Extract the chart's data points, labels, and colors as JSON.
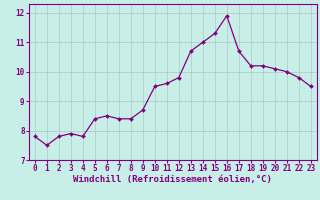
{
  "x": [
    0,
    1,
    2,
    3,
    4,
    5,
    6,
    7,
    8,
    9,
    10,
    11,
    12,
    13,
    14,
    15,
    16,
    17,
    18,
    19,
    20,
    21,
    22,
    23
  ],
  "y": [
    7.8,
    7.5,
    7.8,
    7.9,
    7.8,
    8.4,
    8.5,
    8.4,
    8.4,
    8.7,
    9.5,
    9.6,
    9.8,
    10.7,
    11.0,
    11.3,
    11.9,
    10.7,
    10.2,
    10.2,
    10.1,
    10.0,
    9.8,
    9.5
  ],
  "line_color": "#800080",
  "marker_color": "#800080",
  "bg_color": "#c8eee8",
  "grid_color": "#b0c8c4",
  "spine_color": "#800080",
  "xlabel": "Windchill (Refroidissement éolien,°C)",
  "ylim": [
    7.0,
    12.3
  ],
  "yticks": [
    7,
    8,
    9,
    10,
    11,
    12
  ],
  "xticks": [
    0,
    1,
    2,
    3,
    4,
    5,
    6,
    7,
    8,
    9,
    10,
    11,
    12,
    13,
    14,
    15,
    16,
    17,
    18,
    19,
    20,
    21,
    22,
    23
  ],
  "tick_label_fontsize": 5.5,
  "xlabel_fontsize": 6.5
}
